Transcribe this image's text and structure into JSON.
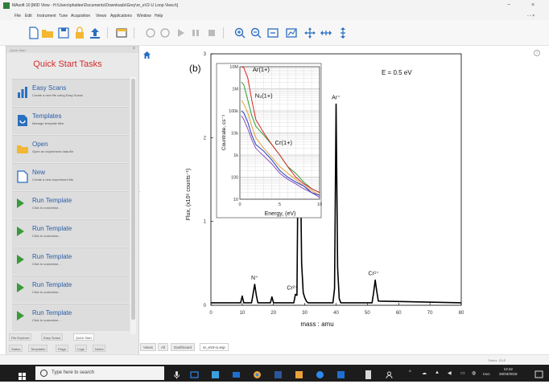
{
  "window": {
    "title": "MAsoft 10  [MID View - H:\\Users\\phatlee\\Documents\\Downloads\\Grey\\or_eV2-U Loop View.h]",
    "controls": [
      "−",
      "×"
    ],
    "doc_controls": "- ▫ ×"
  },
  "menu": [
    "File",
    "Edit",
    "Instrument",
    "Tune",
    "Acquisition",
    "Views",
    "Applications",
    "Window",
    "Help"
  ],
  "toolbar": {
    "icons": [
      "new-icon",
      "open-icon",
      "save-icon",
      "lock-icon",
      "upload-icon",
      "window-icon",
      "record-icon",
      "record2-icon",
      "play-icon",
      "pause-icon",
      "stop-icon",
      "zoom-in-icon",
      "zoom-out-icon",
      "zoom-fit-icon",
      "fit-axes-icon",
      "pan-icon",
      "pan-h-icon",
      "pan-v-icon"
    ]
  },
  "left_panel": {
    "header": "Quick Start",
    "title": "Quick Start Tasks",
    "tasks": [
      {
        "title": "Easy Scans",
        "sub": "Create a new file using Easy Scans",
        "icon": "bar-chart-icon"
      },
      {
        "title": "Templates",
        "sub": "Manage template files",
        "icon": "template-icon"
      },
      {
        "title": "Open",
        "sub": "Open an experiment data file",
        "icon": "folder-icon"
      },
      {
        "title": "New",
        "sub": "Create a new experiment file",
        "icon": "new-file-icon"
      },
      {
        "title": "Run Template",
        "sub": "Click to customise...",
        "icon": "run-arrow-icon"
      },
      {
        "title": "Run Template",
        "sub": "Click to customise...",
        "icon": "run-arrow-icon"
      },
      {
        "title": "Run Template",
        "sub": "Click to customise...",
        "icon": "run-arrow-icon"
      },
      {
        "title": "Run Template",
        "sub": "Click to customise...",
        "icon": "run-arrow-icon"
      },
      {
        "title": "Run Template",
        "sub": "Click to customise...",
        "icon": "run-arrow-icon"
      }
    ],
    "tabs_row1": [
      {
        "label": "File Explorer",
        "active": false
      },
      {
        "label": "Easy Scans",
        "active": false
      },
      {
        "label": "Quick Start",
        "active": true
      }
    ],
    "tabs_row2": [
      "Status",
      "Templates",
      "Flags",
      "Logs",
      "Notes"
    ]
  },
  "doc_tabs": [
    {
      "label": "Views",
      "active": false
    },
    {
      "label": "All",
      "active": false
    },
    {
      "label": "Dashboard",
      "active": false
    },
    {
      "label": "or_eV2-U.exp",
      "active": true
    }
  ],
  "status": "Status: IDLE",
  "taskbar": {
    "search_placeholder": "Type here to search",
    "time": "13:42",
    "date": "26/03/2018",
    "lang": "ENG",
    "app_colors": [
      "#2d89ef",
      "#3aa0e0",
      "#1e6fd0",
      "#e8a13a",
      "#4aa44a",
      "#2b579a",
      "#d9d9d9",
      "#ffffff"
    ]
  },
  "chart_data": [
    {
      "type": "line",
      "panel_label": "(b)",
      "annotation": "E = 0.5 eV",
      "xlabel": "mass : amu",
      "ylabel": "Flux, (x10⁶ counts⁻¹)",
      "xlim": [
        0,
        80
      ],
      "ylim": [
        0,
        3
      ],
      "xticks": [
        "0",
        "10",
        "20",
        "30",
        "40",
        "50",
        "60",
        "70",
        "80"
      ],
      "yticks": [
        "0",
        "1",
        "2",
        "3"
      ],
      "series": [
        {
          "color": "#000000",
          "x": [
            0,
            9.5,
            10,
            10.5,
            13,
            13.5,
            14,
            14.5,
            15,
            19,
            19.5,
            20,
            20.5,
            26.5,
            27,
            27.5,
            28,
            28.5,
            29,
            29.5,
            30,
            30.5,
            31,
            39,
            39.5,
            40,
            40.5,
            41,
            41.5,
            51.5,
            52,
            52.5,
            53,
            53.5,
            80
          ],
          "y": [
            0.03,
            0.03,
            0.11,
            0.03,
            0.03,
            0.14,
            0.25,
            0.12,
            0.03,
            0.03,
            0.1,
            0.03,
            0.03,
            0.03,
            0.13,
            0.12,
            2.38,
            2.0,
            0.5,
            0.15,
            0.09,
            0.05,
            0.03,
            0.03,
            0.2,
            2.4,
            0.45,
            0.08,
            0.03,
            0.03,
            0.15,
            0.3,
            0.17,
            0.05,
            0.03
          ]
        }
      ],
      "annotations": [
        {
          "text": "N₂⁺",
          "x": 28
        },
        {
          "text": "Ar⁺",
          "x": 40
        },
        {
          "text": "N⁺",
          "x": 14
        },
        {
          "text": "Cr²⁺",
          "x": 26
        },
        {
          "text": "Cr¹⁺",
          "x": 52
        }
      ]
    },
    {
      "type": "line",
      "scale": "log",
      "xlabel": "Energy, (eV)",
      "ylabel": "Countrate, cs⁻¹",
      "xlim": [
        0,
        10
      ],
      "ylim": [
        10,
        10000000
      ],
      "xticks": [
        "0",
        "5",
        "10"
      ],
      "yticks": [
        "10M",
        "1M",
        "100k",
        "10k",
        "1k",
        "100",
        "10"
      ],
      "grid": true,
      "series": [
        {
          "name": "Ar(1+)",
          "color": "#d62728",
          "x": [
            0.2,
            0.5,
            1,
            1.5,
            2,
            3,
            4,
            5,
            6,
            7,
            8,
            9,
            10
          ],
          "y": [
            10000000,
            9000000,
            3000000,
            300000,
            40000,
            10000,
            3000,
            1000,
            300,
            100,
            50,
            30,
            20
          ]
        },
        {
          "name": "N₂(1+)",
          "color": "#2ca02c",
          "x": [
            0.2,
            0.5,
            1,
            1.5,
            2,
            3,
            4,
            5,
            6,
            7,
            8,
            9,
            10
          ],
          "y": [
            2000000,
            1500000,
            300000,
            60000,
            20000,
            8000,
            3000,
            1000,
            300,
            150,
            60,
            30,
            20
          ]
        },
        {
          "name": "Cr(1+)",
          "color": "#1f3fbf",
          "x": [
            0.2,
            0.5,
            1,
            1.5,
            2,
            3,
            4,
            5,
            6,
            7,
            8,
            9,
            10
          ],
          "y": [
            100000,
            80000,
            30000,
            8000,
            3000,
            1500,
            600,
            200,
            100,
            60,
            40,
            20,
            15
          ]
        },
        {
          "color": "#e6a23c",
          "x": [
            0.2,
            0.5,
            1,
            1.5,
            2,
            3,
            4,
            5,
            6,
            7,
            8,
            9,
            10
          ],
          "y": [
            300000,
            200000,
            80000,
            20000,
            6000,
            2000,
            800,
            300,
            150,
            80,
            40,
            25,
            15
          ]
        },
        {
          "color": "#8a4fbf",
          "x": [
            0.2,
            0.5,
            1,
            1.5,
            2,
            3,
            4,
            5,
            6,
            7,
            8,
            9,
            10
          ],
          "y": [
            60000,
            40000,
            15000,
            5000,
            2000,
            900,
            400,
            150,
            80,
            50,
            30,
            20,
            12
          ]
        }
      ]
    }
  ]
}
